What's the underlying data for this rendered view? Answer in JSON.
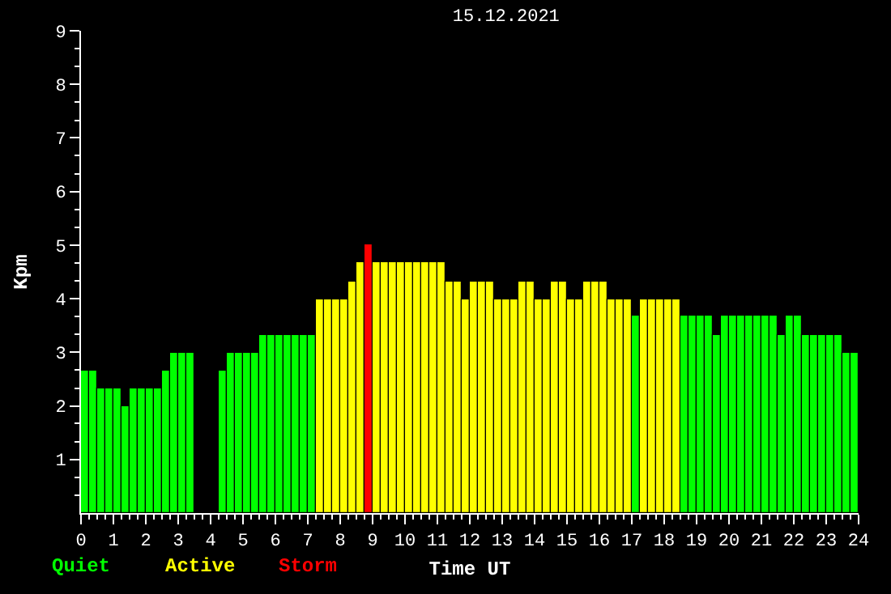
{
  "chart_data": {
    "type": "bar",
    "title": "15.12.2021",
    "xlabel": "Time UT",
    "ylabel": "Kpm",
    "x": [
      0.125,
      0.375,
      0.625,
      0.875,
      1.125,
      1.375,
      1.625,
      1.875,
      2.125,
      2.375,
      2.625,
      2.875,
      3.125,
      3.375,
      3.625,
      3.875,
      4.125,
      4.375,
      4.625,
      4.875,
      5.125,
      5.375,
      5.625,
      5.875,
      6.125,
      6.375,
      6.625,
      6.875,
      7.125,
      7.375,
      7.625,
      7.875,
      8.125,
      8.375,
      8.625,
      8.875,
      9.125,
      9.375,
      9.625,
      9.875,
      10.125,
      10.375,
      10.625,
      10.875,
      11.125,
      11.375,
      11.625,
      11.875,
      12.125,
      12.375,
      12.625,
      12.875,
      13.125,
      13.375,
      13.625,
      13.875,
      14.125,
      14.375,
      14.625,
      14.875,
      15.125,
      15.375,
      15.625,
      15.875,
      16.125,
      16.375,
      16.625,
      16.875,
      17.125,
      17.375,
      17.625,
      17.875,
      18.125,
      18.375,
      18.625,
      18.875,
      19.125,
      19.375,
      19.625,
      19.875,
      20.125,
      20.375,
      20.625,
      20.875,
      21.125,
      21.375,
      21.625,
      21.875,
      22.125,
      22.375,
      22.625,
      22.875,
      23.125,
      23.375,
      23.625,
      23.875
    ],
    "series": [
      {
        "name": "Quiet",
        "color": "#00ff00",
        "values": [
          2.67,
          2.67,
          2.33,
          2.33,
          2.33,
          2.0,
          2.33,
          2.33,
          2.33,
          2.33,
          2.67,
          3.0,
          3.0,
          3.0,
          null,
          null,
          null,
          2.67,
          3.0,
          3.0,
          3.0,
          3.0,
          3.33,
          3.33,
          3.33,
          3.33,
          3.33,
          3.33,
          3.33,
          null,
          null,
          null,
          null,
          null,
          null,
          null,
          null,
          null,
          null,
          null,
          null,
          null,
          null,
          null,
          null,
          null,
          null,
          null,
          null,
          null,
          null,
          null,
          null,
          null,
          null,
          null,
          null,
          null,
          null,
          null,
          null,
          null,
          null,
          null,
          null,
          null,
          null,
          null,
          3.67,
          null,
          null,
          null,
          null,
          null,
          3.67,
          3.67,
          3.67,
          3.67,
          3.33,
          3.67,
          3.67,
          3.67,
          3.67,
          3.67,
          3.67,
          3.67,
          3.33,
          3.67,
          3.67,
          3.33,
          3.33,
          3.33,
          3.33,
          3.33,
          3.0,
          3.0
        ]
      },
      {
        "name": "Active",
        "color": "#ffff00",
        "values": [
          null,
          null,
          null,
          null,
          null,
          null,
          null,
          null,
          null,
          null,
          null,
          null,
          null,
          null,
          null,
          null,
          null,
          null,
          null,
          null,
          null,
          null,
          null,
          null,
          null,
          null,
          null,
          null,
          null,
          4.0,
          4.0,
          4.0,
          4.0,
          4.33,
          4.67,
          null,
          4.67,
          4.67,
          4.67,
          4.67,
          4.67,
          4.67,
          4.67,
          4.67,
          4.67,
          4.33,
          4.33,
          4.0,
          4.33,
          4.33,
          4.33,
          4.0,
          4.0,
          4.0,
          4.33,
          4.33,
          4.0,
          4.0,
          4.33,
          4.33,
          4.0,
          4.0,
          4.33,
          4.33,
          4.33,
          4.0,
          4.0,
          4.0,
          null,
          4.0,
          4.0,
          4.0,
          4.0,
          4.0,
          null,
          null,
          null,
          null,
          null,
          null,
          null,
          null,
          null,
          null,
          null,
          null,
          null,
          null,
          null,
          null,
          null,
          null,
          null,
          null,
          null,
          null
        ]
      },
      {
        "name": "Storm",
        "color": "#ff0000",
        "values": [
          null,
          null,
          null,
          null,
          null,
          null,
          null,
          null,
          null,
          null,
          null,
          null,
          null,
          null,
          null,
          null,
          null,
          null,
          null,
          null,
          null,
          null,
          null,
          null,
          null,
          null,
          null,
          null,
          null,
          null,
          null,
          null,
          null,
          null,
          null,
          5.0,
          null,
          null,
          null,
          null,
          null,
          null,
          null,
          null,
          null,
          null,
          null,
          null,
          null,
          null,
          null,
          null,
          null,
          null,
          null,
          null,
          null,
          null,
          null,
          null,
          null,
          null,
          null,
          null,
          null,
          null,
          null,
          null,
          null,
          null,
          null,
          null,
          null,
          null,
          null,
          null,
          null,
          null,
          null,
          null,
          null,
          null,
          null,
          null,
          null,
          null,
          null,
          null,
          null,
          null,
          null,
          null,
          null,
          null,
          null,
          null
        ]
      }
    ],
    "xlim": [
      0,
      24
    ],
    "xticks": [
      0,
      1,
      2,
      3,
      4,
      5,
      6,
      7,
      8,
      9,
      10,
      11,
      12,
      13,
      14,
      15,
      16,
      17,
      18,
      19,
      20,
      21,
      22,
      23,
      24,
      {
        "value": 0.25,
        "label": null
      },
      {
        "value": 0.5,
        "label": null
      },
      {
        "value": 0.75,
        "label": null
      },
      {
        "value": 1.25,
        "label": null
      },
      {
        "value": 1.5,
        "label": null
      },
      {
        "value": 1.75,
        "label": null
      },
      {
        "value": 2.25,
        "label": null
      },
      {
        "value": 2.5,
        "label": null
      },
      {
        "value": 2.75,
        "label": null
      },
      {
        "value": 3.25,
        "label": null
      },
      {
        "value": 3.5,
        "label": null
      },
      {
        "value": 3.75,
        "label": null
      },
      {
        "value": 4.25,
        "label": null
      },
      {
        "value": 4.5,
        "label": null
      },
      {
        "value": 4.75,
        "label": null
      },
      {
        "value": 5.25,
        "label": null
      },
      {
        "value": 5.5,
        "label": null
      },
      {
        "value": 5.75,
        "label": null
      },
      {
        "value": 6.25,
        "label": null
      },
      {
        "value": 6.5,
        "label": null
      },
      {
        "value": 6.75,
        "label": null
      },
      {
        "value": 7.25,
        "label": null
      },
      {
        "value": 7.5,
        "label": null
      },
      {
        "value": 7.75,
        "label": null
      },
      {
        "value": 8.25,
        "label": null
      },
      {
        "value": 8.5,
        "label": null
      },
      {
        "value": 8.75,
        "label": null
      },
      {
        "value": 9.25,
        "label": null
      },
      {
        "value": 9.5,
        "label": null
      },
      {
        "value": 9.75,
        "label": null
      },
      {
        "value": 10.25,
        "label": null
      },
      {
        "value": 10.5,
        "label": null
      },
      {
        "value": 10.75,
        "label": null
      },
      {
        "value": 11.25,
        "label": null
      },
      {
        "value": 11.5,
        "label": null
      },
      {
        "value": 11.75,
        "label": null
      },
      {
        "value": 12.25,
        "label": null
      },
      {
        "value": 12.5,
        "label": null
      },
      {
        "value": 12.75,
        "label": null
      },
      {
        "value": 13.25,
        "label": null
      },
      {
        "value": 13.5,
        "label": null
      },
      {
        "value": 13.75,
        "label": null
      },
      {
        "value": 14.25,
        "label": null
      },
      {
        "value": 14.5,
        "label": null
      },
      {
        "value": 14.75,
        "label": null
      },
      {
        "value": 15.25,
        "label": null
      },
      {
        "value": 15.5,
        "label": null
      },
      {
        "value": 15.75,
        "label": null
      },
      {
        "value": 16.25,
        "label": null
      },
      {
        "value": 16.5,
        "label": null
      },
      {
        "value": 16.75,
        "label": null
      },
      {
        "value": 17.25,
        "label": null
      },
      {
        "value": 17.5,
        "label": null
      },
      {
        "value": 17.75,
        "label": null
      },
      {
        "value": 18.25,
        "label": null
      },
      {
        "value": 18.5,
        "label": null
      },
      {
        "value": 18.75,
        "label": null
      },
      {
        "value": 19.25,
        "label": null
      },
      {
        "value": 19.5,
        "label": null
      },
      {
        "value": 19.75,
        "label": null
      },
      {
        "value": 20.25,
        "label": null
      },
      {
        "value": 20.5,
        "label": null
      },
      {
        "value": 20.75,
        "label": null
      },
      {
        "value": 21.25,
        "label": null
      },
      {
        "value": 21.5,
        "label": null
      },
      {
        "value": 21.75,
        "label": null
      },
      {
        "value": 22.25,
        "label": null
      },
      {
        "value": 22.5,
        "label": null
      },
      {
        "value": 22.75,
        "label": null
      },
      {
        "value": 23.25,
        "label": null
      },
      {
        "value": 23.5,
        "label": null
      },
      {
        "value": 23.75,
        "label": null
      }
    ],
    "ylim": [
      0,
      9
    ],
    "yticks": [
      1,
      2,
      3,
      4,
      5,
      6,
      7,
      8,
      9,
      {
        "value": 0.33,
        "label": null
      },
      {
        "value": 0.67,
        "label": null
      },
      {
        "value": 1.33,
        "label": null
      },
      {
        "value": 1.67,
        "label": null
      },
      {
        "value": 2.33,
        "label": null
      },
      {
        "value": 2.67,
        "label": null
      },
      {
        "value": 3.33,
        "label": null
      },
      {
        "value": 3.67,
        "label": null
      },
      {
        "value": 4.33,
        "label": null
      },
      {
        "value": 4.67,
        "label": null
      },
      {
        "value": 5.33,
        "label": null
      },
      {
        "value": 5.67,
        "label": null
      },
      {
        "value": 6.33,
        "label": null
      },
      {
        "value": 6.67,
        "label": null
      },
      {
        "value": 7.33,
        "label": null
      },
      {
        "value": 7.67,
        "label": null
      },
      {
        "value": 8.33,
        "label": null
      },
      {
        "value": 8.67,
        "label": null
      }
    ],
    "grid": false,
    "legend": "bottom left"
  }
}
